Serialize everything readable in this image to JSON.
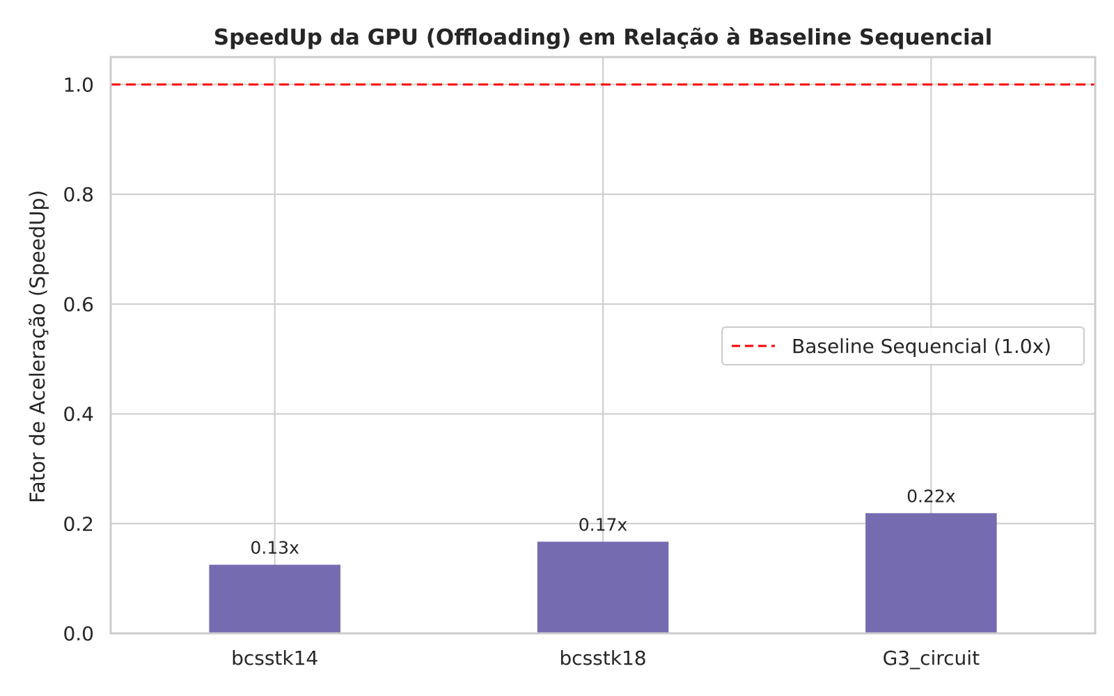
{
  "chart_data": {
    "type": "bar",
    "title": "SpeedUp da GPU (Offloading) em Relação à Baseline Sequencial",
    "xlabel": "",
    "ylabel": "Fator de Aceleração (SpeedUp)",
    "categories": [
      "bcsstk14",
      "bcsstk18",
      "G3_circuit"
    ],
    "values": [
      0.125,
      0.167,
      0.219
    ],
    "data_labels": [
      "0.13x",
      "0.17x",
      "0.22x"
    ],
    "ylim": [
      0,
      1.05
    ],
    "yticks": [
      0.0,
      0.2,
      0.4,
      0.6,
      0.8,
      1.0
    ],
    "ytick_labels": [
      "0.0",
      "0.2",
      "0.4",
      "0.6",
      "0.8",
      "1.0"
    ],
    "grid": true,
    "bar_color": "#756bb1",
    "reference_line": {
      "value": 1.0,
      "label": "Baseline Sequencial (1.0x)",
      "color": "#ff0000",
      "style": "dashed"
    },
    "legend_position": "center-right"
  }
}
